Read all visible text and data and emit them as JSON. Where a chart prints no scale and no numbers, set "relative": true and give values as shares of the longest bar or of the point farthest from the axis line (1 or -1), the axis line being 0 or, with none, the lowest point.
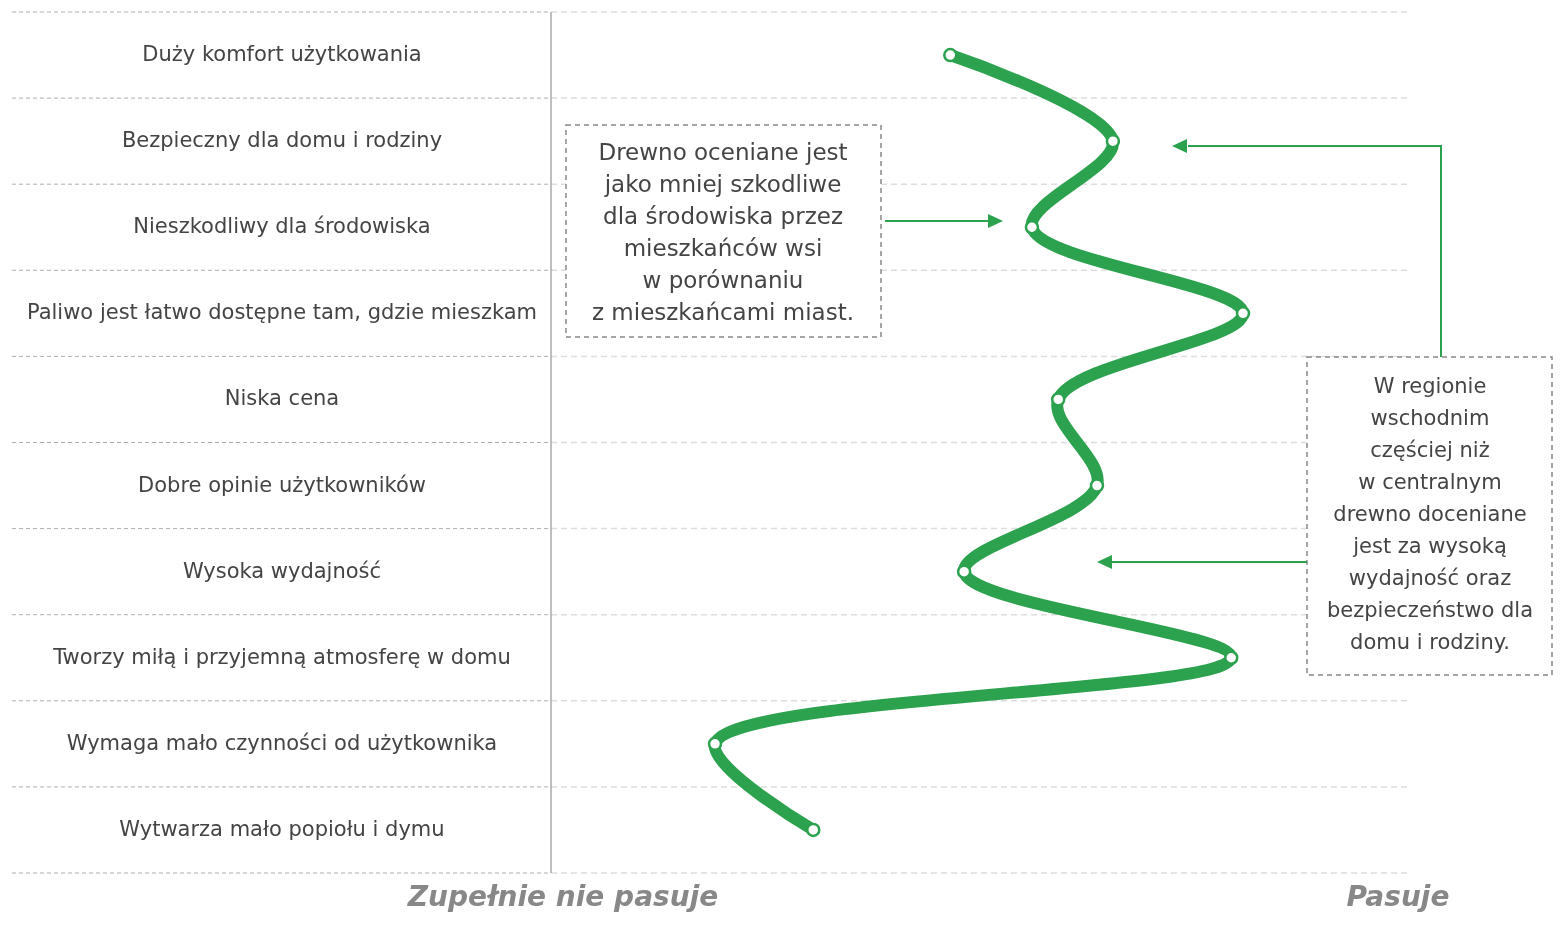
{
  "chart_data": {
    "type": "line",
    "orientation": "horizontal",
    "relative": true,
    "categories": [
      "Duży komfort użytkowania",
      "Bezpieczny dla domu i rodziny",
      "Nieszkodliwy dla środowiska",
      "Paliwo jest łatwo dostępne tam, gdzie mieszkam",
      "Niska cena",
      "Dobre opinie użytkowników",
      "Wysoka wydajność",
      "Tworzy miłą i przyjemną atmosferę w domu",
      "Wymaga mało czynności od użytkownika",
      "Wytwarza mało popiołu i dymu"
    ],
    "series": [
      {
        "color": "#2ca24f",
        "values": [
          0.577,
          0.812,
          0.695,
          1,
          0.733,
          0.789,
          0.597,
          0.983,
          0.237,
          0.379
        ]
      }
    ],
    "marker": "circle",
    "grid": true,
    "annotations": [
      "Zupełnie nie pasuje",
      "Pasuje",
      "Drewno oceniane jest\njako mniej szkodliwe\ndla środowiska przez\nmieszkańców wsi\nw porównaniu\nz mieszkańcami miast.",
      "W regionie\nwschodnim\nczęściej niż\nw centralnym\ndrewno doceniane\njest za wysoką\nwydajność oraz\nbezpieczeństwo dla\ndomu i rodziny."
    ]
  }
}
